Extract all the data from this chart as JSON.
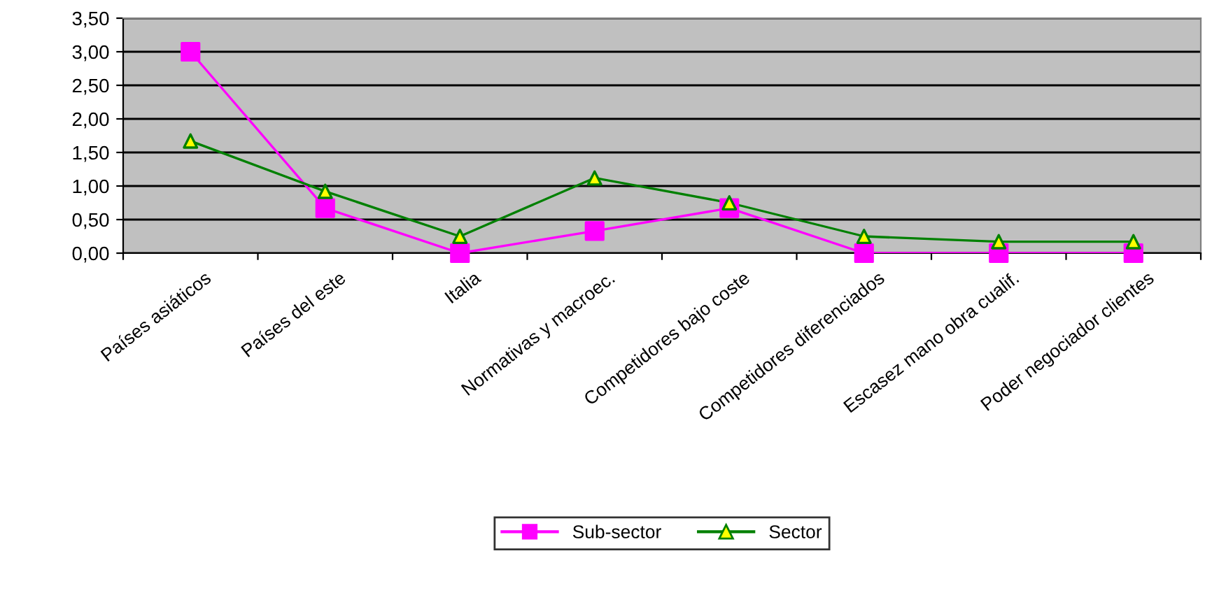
{
  "chart_data": {
    "type": "line",
    "categories": [
      "Países asiáticos",
      "Países del este",
      "Italia",
      "Normativas y macroec.",
      "Competidores bajo coste",
      "Competidores diferenciados",
      "Escasez mano obra cualif.",
      "Poder negociador clientes"
    ],
    "series": [
      {
        "name": "Sub-sector",
        "color": "#ff00ff",
        "marker": "square",
        "values": [
          3.0,
          0.67,
          0.0,
          0.33,
          0.67,
          0.0,
          0.0,
          0.0
        ]
      },
      {
        "name": "Sector",
        "color": "#008000",
        "marker": "triangle",
        "colors": [
          "#ffff00",
          "#ffff00",
          "#ffff00",
          "#ffff00",
          "#ffff00",
          "#ffff00",
          "#ffff00",
          "#ffff00"
        ],
        "values": [
          1.67,
          0.92,
          0.25,
          1.12,
          0.75,
          0.25,
          0.17,
          0.17
        ]
      }
    ],
    "ylim": [
      0,
      3.5
    ],
    "yticks": [
      {
        "value": 0,
        "label": "0,00"
      },
      {
        "value": 0.5,
        "label": "0,50"
      },
      {
        "value": 1.0,
        "label": "1,00"
      },
      {
        "value": 1.5,
        "label": "1,50"
      },
      {
        "value": 2.0,
        "label": "2,00"
      },
      {
        "value": 2.5,
        "label": "2,50"
      },
      {
        "value": 3.0,
        "label": "3,00"
      },
      {
        "value": 3.5,
        "label": "3,50"
      }
    ],
    "grid": "y",
    "legend": "bottom",
    "line_style": "solid"
  }
}
